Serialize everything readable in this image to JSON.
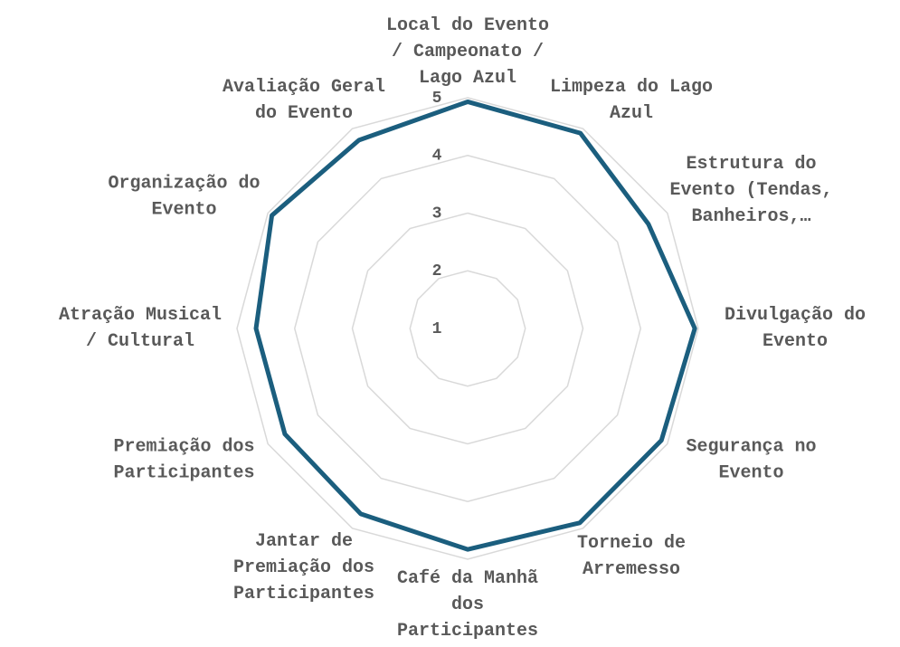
{
  "chart_data": {
    "type": "radar",
    "categories": [
      "Local do Evento / Campeonato / Lago Azul",
      "Limpeza do Lago Azul",
      "Estrutura do Evento (Tendas, Banheiros,…",
      "Divulgação do Evento",
      "Segurança no Evento",
      "Torneio de Arremesso",
      "Café da Manhã dos Participantes",
      "Jantar de Premiação dos Participantes",
      "Premiação dos Participantes",
      "Atração Musical / Cultural",
      "Organização do Evento",
      "Avaliação Geral do Evento"
    ],
    "series": [
      {
        "color": "#1b5e7e",
        "values": [
          4.93,
          4.91,
          4.62,
          4.94,
          4.88,
          4.89,
          4.83,
          4.71,
          4.66,
          4.67,
          4.92,
          4.77
        ]
      }
    ],
    "ylim": [
      1,
      5
    ],
    "yticks": [
      1,
      2,
      3,
      4,
      5
    ],
    "grid": true
  }
}
